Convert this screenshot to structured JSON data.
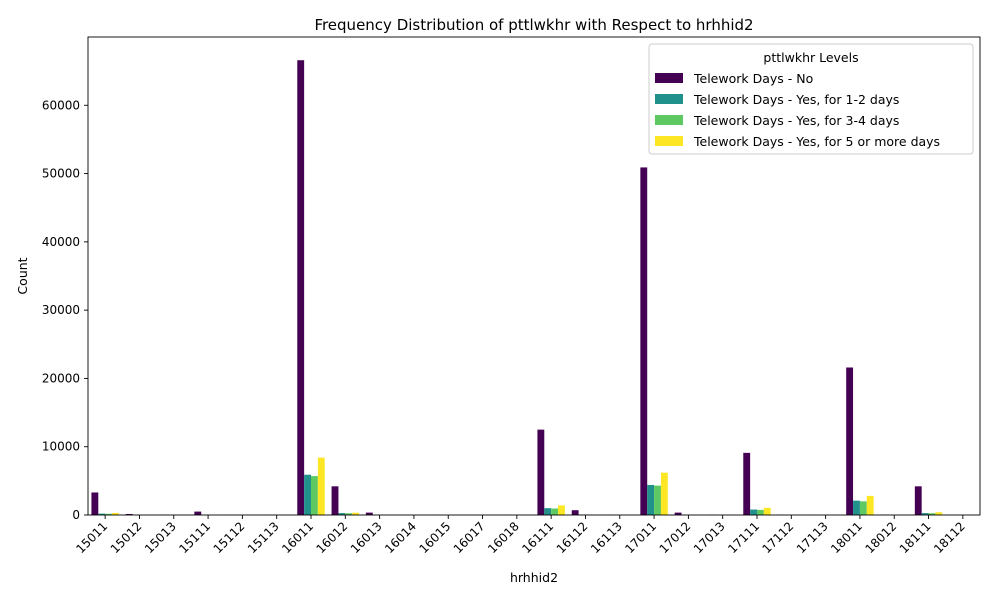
{
  "chart_data": {
    "type": "bar",
    "title": "Frequency Distribution of pttlwkhr with Respect to hrhhid2",
    "xlabel": "hrhhid2",
    "ylabel": "Count",
    "ylim": [
      0,
      70000
    ],
    "yticks": [
      0,
      10000,
      20000,
      30000,
      40000,
      50000,
      60000
    ],
    "grid": false,
    "legend": {
      "title": "pttlwkhr Levels",
      "placement": "top-right"
    },
    "categories": [
      "15011",
      "15012",
      "15013",
      "15111",
      "15112",
      "15113",
      "16011",
      "16012",
      "16013",
      "16014",
      "16015",
      "16017",
      "16018",
      "16111",
      "16112",
      "16113",
      "17011",
      "17012",
      "17013",
      "17111",
      "17112",
      "17113",
      "18011",
      "18012",
      "18111",
      "18112"
    ],
    "series": [
      {
        "name": "Telework Days - No",
        "color": "#440154",
        "values": [
          3300,
          150,
          30,
          500,
          20,
          10,
          66600,
          4200,
          350,
          20,
          20,
          15,
          10,
          12500,
          700,
          40,
          50900,
          350,
          40,
          9100,
          30,
          20,
          21600,
          60,
          4200,
          30
        ]
      },
      {
        "name": "Telework Days - Yes, for 1-2 days",
        "color": "#21918c",
        "values": [
          200,
          10,
          0,
          30,
          0,
          0,
          5900,
          280,
          20,
          0,
          0,
          0,
          0,
          1000,
          40,
          0,
          4400,
          20,
          0,
          800,
          0,
          0,
          2100,
          0,
          280,
          0
        ]
      },
      {
        "name": "Telework Days - Yes, for 3-4 days",
        "color": "#5ec962",
        "values": [
          180,
          10,
          0,
          25,
          0,
          0,
          5700,
          260,
          15,
          0,
          0,
          0,
          0,
          950,
          35,
          0,
          4300,
          15,
          0,
          750,
          0,
          0,
          2000,
          0,
          260,
          0
        ]
      },
      {
        "name": "Telework Days - Yes, for 5 or more days",
        "color": "#fde725",
        "values": [
          300,
          15,
          0,
          40,
          0,
          0,
          8400,
          330,
          25,
          0,
          0,
          0,
          0,
          1400,
          50,
          0,
          6200,
          25,
          0,
          1050,
          0,
          0,
          2800,
          0,
          400,
          0
        ]
      }
    ]
  }
}
